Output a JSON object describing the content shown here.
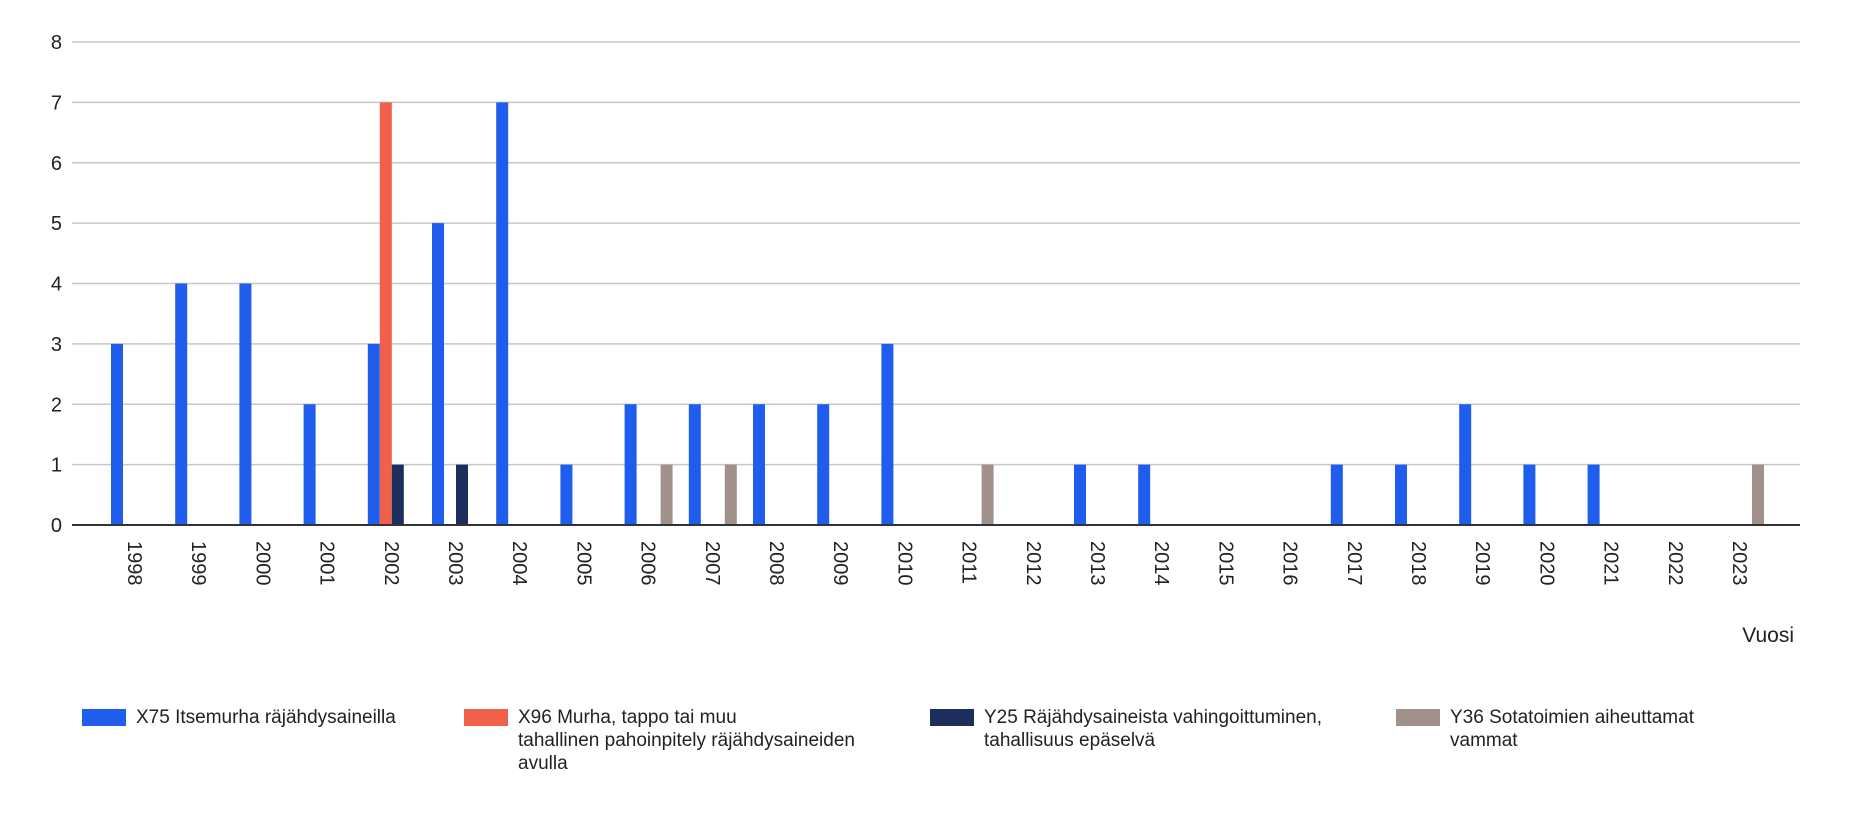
{
  "chart_data": {
    "type": "bar",
    "xlabel": "Vuosi",
    "ylabel": "",
    "ylim": [
      0,
      8
    ],
    "yticks": [
      "0",
      "1",
      "2",
      "3",
      "4",
      "5",
      "6",
      "7",
      "8"
    ],
    "grid": true,
    "legend_position": "bottom",
    "categories": [
      "1998",
      "1999",
      "2000",
      "2001",
      "2002",
      "2003",
      "2004",
      "2005",
      "2006",
      "2007",
      "2008",
      "2009",
      "2010",
      "2011",
      "2012",
      "2013",
      "2014",
      "2015",
      "2016",
      "2017",
      "2018",
      "2019",
      "2020",
      "2021",
      "2022",
      "2023"
    ],
    "series": [
      {
        "name": "X75 Itsemurha räjähdysaineilla",
        "color": "#1f5ded",
        "values": [
          3,
          4,
          4,
          2,
          3,
          5,
          7,
          1,
          2,
          2,
          2,
          2,
          3,
          0,
          0,
          1,
          1,
          0,
          0,
          1,
          1,
          2,
          1,
          1,
          0,
          0
        ]
      },
      {
        "name": "X96 Murha, tappo tai muu tahallinen pahoinpitely räjähdysaineiden avulla",
        "color": "#f0604a",
        "values": [
          0,
          0,
          0,
          0,
          7,
          0,
          0,
          0,
          0,
          0,
          0,
          0,
          0,
          0,
          0,
          0,
          0,
          0,
          0,
          0,
          0,
          0,
          0,
          0,
          0,
          0
        ]
      },
      {
        "name": "Y25 Räjähdysaineista vahingoittuminen, tahallisuus epäselvä",
        "color": "#1b2e5c",
        "values": [
          0,
          0,
          0,
          0,
          1,
          1,
          0,
          0,
          0,
          0,
          0,
          0,
          0,
          0,
          0,
          0,
          0,
          0,
          0,
          0,
          0,
          0,
          0,
          0,
          0,
          0
        ]
      },
      {
        "name": "Y36 Sotatoimien aiheuttamat vammat",
        "color": "#a2918a",
        "values": [
          0,
          0,
          0,
          0,
          0,
          0,
          0,
          0,
          1,
          1,
          0,
          0,
          0,
          1,
          0,
          0,
          0,
          0,
          0,
          0,
          0,
          0,
          0,
          0,
          0,
          1
        ]
      }
    ]
  },
  "legend": [
    {
      "lines": [
        "X75 Itsemurha räjähdysaineilla"
      ]
    },
    {
      "lines": [
        "X96 Murha, tappo tai muu",
        "tahallinen pahoinpitely räjähdysaineiden",
        "avulla"
      ]
    },
    {
      "lines": [
        "Y25 Räjähdysaineista vahingoittuminen,",
        "tahallisuus epäselvä"
      ]
    },
    {
      "lines": [
        "Y36 Sotatoimien aiheuttamat",
        "vammat"
      ]
    }
  ]
}
